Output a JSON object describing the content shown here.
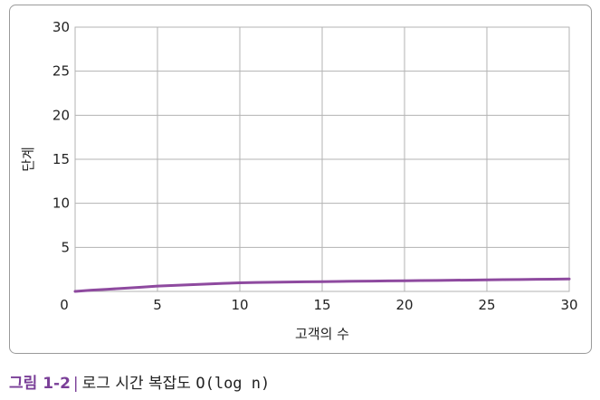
{
  "chart_data": {
    "type": "line",
    "title": "",
    "xlabel": "고객의 수",
    "ylabel": "단계",
    "xlim": [
      0,
      30
    ],
    "ylim": [
      0,
      30
    ],
    "xticks": [
      "5",
      "10",
      "15",
      "20",
      "25",
      "30"
    ],
    "yticks": [
      "5",
      "10",
      "15",
      "20",
      "25",
      "30"
    ],
    "origin_label": "0",
    "grid": true,
    "legend": "none",
    "series": [
      {
        "color": "#8e4a9f",
        "x": [
          0,
          1,
          2,
          3,
          4,
          5,
          6,
          7,
          8,
          9,
          10,
          11,
          12,
          13,
          14,
          15,
          16,
          17,
          18,
          19,
          20,
          21,
          22,
          23,
          24,
          25,
          26,
          27,
          28,
          29,
          30
        ],
        "y": [
          0,
          0.14,
          0.25,
          0.36,
          0.48,
          0.6,
          0.68,
          0.76,
          0.84,
          0.91,
          0.98,
          1.01,
          1.04,
          1.07,
          1.09,
          1.11,
          1.13,
          1.15,
          1.17,
          1.19,
          1.21,
          1.23,
          1.25,
          1.27,
          1.29,
          1.31,
          1.33,
          1.35,
          1.37,
          1.39,
          1.41
        ]
      }
    ]
  },
  "caption": {
    "figure_label": "그림 1-2",
    "separator": "|",
    "text": "로그 시간 복잡도 ",
    "notation": "O(log n)"
  }
}
